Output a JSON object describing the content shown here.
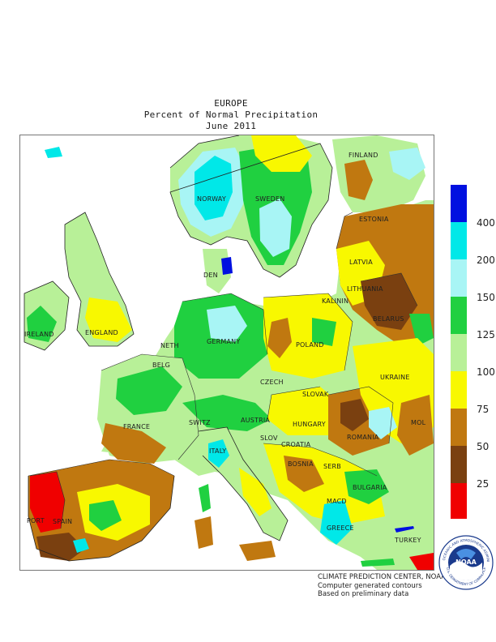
{
  "header": {
    "region": "EUROPE",
    "subtitle": "Percent of Normal Precipitation",
    "period": "June 2011"
  },
  "map": {
    "labels": {
      "finland": "FINLAND",
      "norway": "NORWAY",
      "sweden": "SWEDEN",
      "estonia": "ESTONIA",
      "latvia": "LATVIA",
      "lithuania": "LITHUANIA",
      "kalinin": "KALININ",
      "belarus": "BELARUS",
      "denmark": "DEN",
      "ireland": "IRELAND",
      "england": "ENGLAND",
      "netherlands": "NETH",
      "germany": "GERMANY",
      "poland": "POLAND",
      "belgium": "BELG",
      "czech": "CZECH",
      "slovak": "SLOVAK",
      "ukraine": "UKRAINE",
      "moldova": "MOL",
      "france": "FRANCE",
      "switzerland": "SWITZ",
      "austria": "AUSTRIA",
      "hungary": "HUNGARY",
      "romania": "ROMANIA",
      "italy": "ITALY",
      "slovenia": "SLOV",
      "croatia": "CROATIA",
      "bosnia": "BOSNIA",
      "serbia": "SERB",
      "bulgaria": "BULGARIA",
      "macedonia": "MACD",
      "portugal": "PORT",
      "spain": "SPAIN",
      "greece": "GREECE",
      "turkey": "TURKEY"
    }
  },
  "legend": {
    "title": "",
    "bins": [
      {
        "label": "400",
        "color": "#0010e0"
      },
      {
        "label": "200",
        "color": "#00e8e8"
      },
      {
        "label": "150",
        "color": "#a8f5f5"
      },
      {
        "label": "125",
        "color": "#20d040"
      },
      {
        "label": "100",
        "color": "#b8f098"
      },
      {
        "label": "75",
        "color": "#f8f800"
      },
      {
        "label": "50",
        "color": "#c07810"
      },
      {
        "label": "25",
        "color": "#7a4010"
      }
    ],
    "bottom_color": "#f00000",
    "colors": {
      "400": "#0010e0",
      "200": "#00e8e8",
      "150": "#a8f5f5",
      "125": "#20d040",
      "100": "#b8f098",
      "75": "#f8f800",
      "50": "#c07810",
      "25": "#7a4010",
      "0": "#f00000"
    }
  },
  "footer": {
    "line1": "CLIMATE PREDICTION CENTER, NOAA",
    "line2": "Computer generated contours",
    "line3": "Based on preliminary data"
  },
  "logo": {
    "center_text": "NOAA",
    "ring_top": "NATIONAL OCEANIC AND ATMOSPHERIC ADMINISTRATION",
    "ring_bottom": "U.S. DEPARTMENT OF COMMERCE"
  }
}
